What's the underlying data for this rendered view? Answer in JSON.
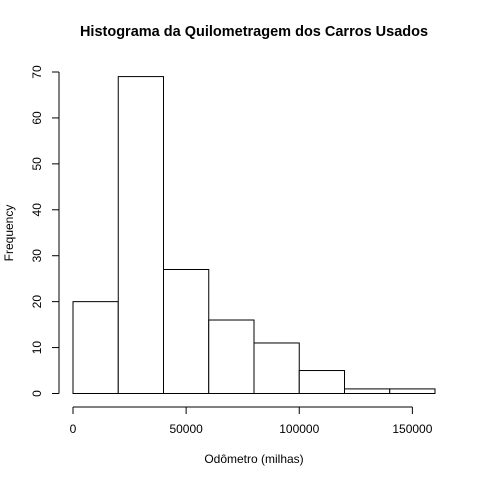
{
  "chart_data": {
    "type": "bar",
    "subtype": "histogram",
    "title": "Histograma da Quilometragem dos Carros Usados",
    "xlabel": "Odômetro (milhas)",
    "ylabel": "Frequency",
    "bins": [
      {
        "start": 0,
        "end": 20000,
        "count": 20
      },
      {
        "start": 20000,
        "end": 40000,
        "count": 69
      },
      {
        "start": 40000,
        "end": 60000,
        "count": 27
      },
      {
        "start": 60000,
        "end": 80000,
        "count": 16
      },
      {
        "start": 80000,
        "end": 100000,
        "count": 11
      },
      {
        "start": 100000,
        "end": 120000,
        "count": 5
      },
      {
        "start": 120000,
        "end": 140000,
        "count": 1
      },
      {
        "start": 140000,
        "end": 160000,
        "count": 1
      }
    ],
    "xlim": [
      0,
      160000
    ],
    "ylim": [
      0,
      70
    ],
    "xticks": [
      0,
      50000,
      100000,
      150000
    ],
    "xtick_labels": [
      "0",
      "50000",
      "100000",
      "150000"
    ],
    "yticks": [
      0,
      10,
      20,
      30,
      40,
      50,
      60,
      70
    ],
    "ytick_labels": [
      "0",
      "10",
      "20",
      "30",
      "40",
      "50",
      "60",
      "70"
    ],
    "grid": false,
    "legend": "none",
    "colors": {
      "bar_fill": "#ffffff",
      "bar_stroke": "#000000"
    }
  }
}
